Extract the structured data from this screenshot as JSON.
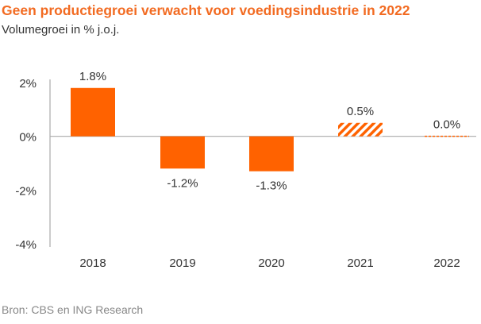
{
  "title": "Geen productiegroei verwacht voor voedingsindustrie in 2022",
  "subtitle": "Volumegroei in % j.o.j.",
  "source": "Bron: CBS en ING Research",
  "colors": {
    "accent": "#ff6200",
    "text": "#333333",
    "axis": "#aaaaaa"
  },
  "chart_data": {
    "type": "bar",
    "categories": [
      "2018",
      "2019",
      "2020",
      "2021",
      "2022"
    ],
    "values": [
      1.8,
      -1.2,
      -1.3,
      0.5,
      0.0
    ],
    "data_labels": [
      "1.8%",
      "-1.2%",
      "-1.3%",
      "0.5%",
      "0.0%"
    ],
    "forecast": [
      false,
      false,
      false,
      true,
      true
    ],
    "ylim": [
      -4,
      2
    ],
    "yticks": [
      2,
      0,
      -2,
      -4
    ],
    "ytick_labels": [
      "2%",
      "0%",
      "-2%",
      "-4%"
    ],
    "grid": false,
    "legend": "none",
    "xlabel": "",
    "ylabel": ""
  }
}
